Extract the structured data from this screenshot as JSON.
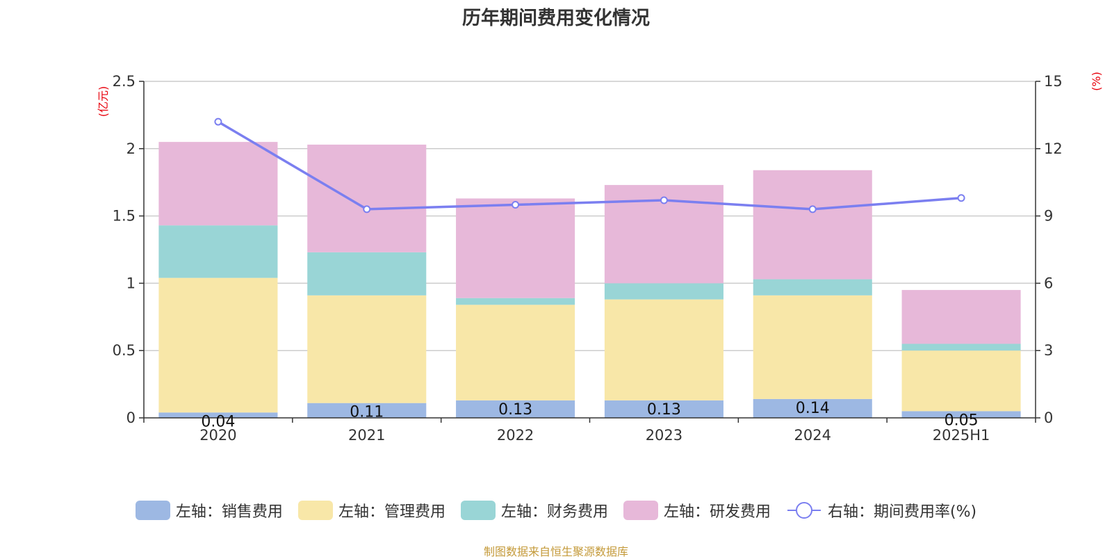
{
  "chart_data": {
    "type": "bar",
    "stacked": true,
    "title": "历年期间费用变化情况",
    "categories": [
      "2020",
      "2021",
      "2022",
      "2023",
      "2024",
      "2025H1"
    ],
    "left_axis": {
      "unit": "(亿元)",
      "range": [
        0,
        2.5
      ],
      "ticks": [
        0,
        0.5,
        1,
        1.5,
        2,
        2.5
      ],
      "tick_labels": [
        "0",
        "0.5",
        "1",
        "1.5",
        "2",
        "2.5"
      ]
    },
    "right_axis": {
      "unit": "(%)",
      "range": [
        0,
        15
      ],
      "ticks": [
        0,
        3,
        6,
        9,
        12,
        15
      ],
      "tick_labels": [
        "0",
        "3",
        "6",
        "9",
        "12",
        "15"
      ]
    },
    "series": [
      {
        "name": "左轴：销售费用",
        "type": "bar",
        "axis": "left",
        "color": "#9db8e3",
        "values": [
          0.04,
          0.11,
          0.13,
          0.13,
          0.14,
          0.05
        ],
        "labels": [
          "0.04",
          "0.11",
          "0.13",
          "0.13",
          "0.14",
          "0.05"
        ]
      },
      {
        "name": "左轴：管理费用",
        "type": "bar",
        "axis": "left",
        "color": "#f8e7a8",
        "values": [
          1.0,
          0.8,
          0.71,
          0.75,
          0.77,
          0.45
        ]
      },
      {
        "name": "左轴：财务费用",
        "type": "bar",
        "axis": "left",
        "color": "#99d5d6",
        "values": [
          0.39,
          0.32,
          0.05,
          0.12,
          0.12,
          0.05
        ]
      },
      {
        "name": "左轴：研发费用",
        "type": "bar",
        "axis": "left",
        "color": "#e7b8d9",
        "values": [
          0.62,
          0.8,
          0.74,
          0.73,
          0.81,
          0.4
        ]
      },
      {
        "name": "右轴：期间费用率(%)",
        "type": "line",
        "axis": "right",
        "color": "#7b7ff0",
        "values": [
          13.2,
          9.3,
          9.5,
          9.7,
          9.3,
          9.8
        ]
      }
    ],
    "grid": true,
    "legend_position": "bottom"
  },
  "colors": {
    "unit_label": "#e8000b",
    "source_note": "#c49a3a",
    "axis_line": "#333333",
    "grid_line": "#cccccc"
  },
  "source_note": "制图数据来自恒生聚源数据库"
}
